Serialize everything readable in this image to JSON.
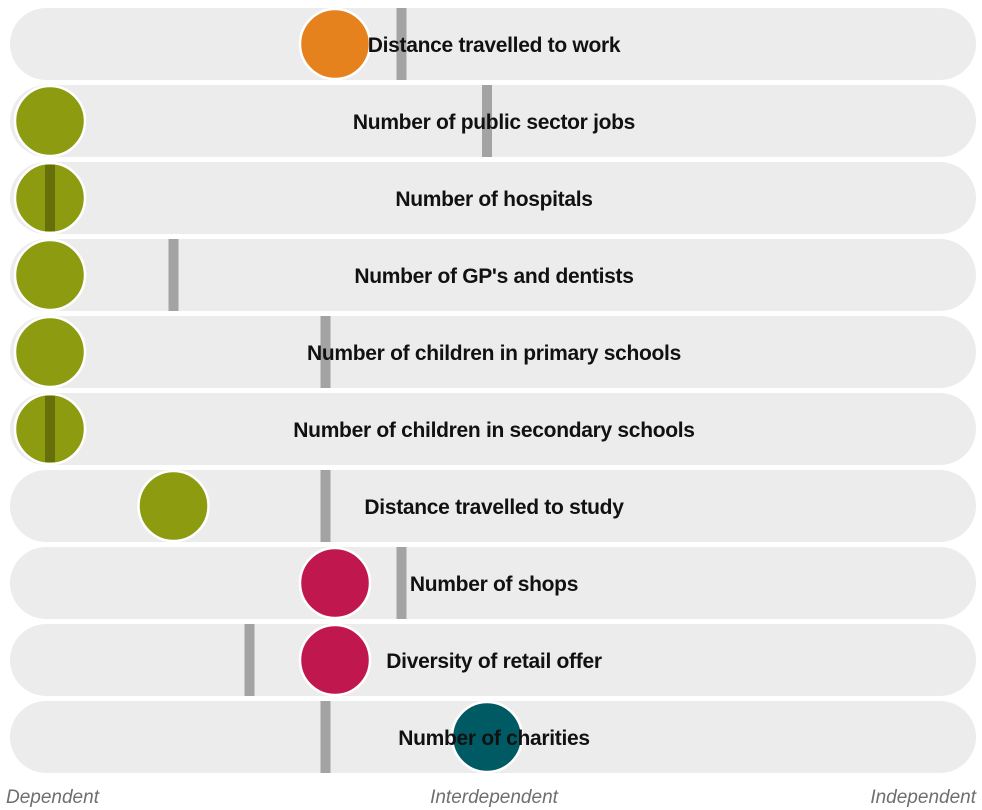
{
  "chart_data": {
    "type": "dot",
    "axis_labels": [
      "Dependent",
      "Interdependent",
      "Independent"
    ],
    "xlim": [
      0,
      1
    ],
    "colors": {
      "orange": "#e6821e",
      "olive": "#8c9b0f",
      "magenta": "#c0174f",
      "teal": "#005a64"
    },
    "rows": [
      {
        "label": "Distance travelled to work",
        "score": 0.34,
        "benchmark": 0.41,
        "color": "orange"
      },
      {
        "label": "Number of public sector jobs",
        "score": 0.04,
        "benchmark": 0.5,
        "color": "olive"
      },
      {
        "label": "Number of hospitals",
        "score": 0.04,
        "benchmark": 0.04,
        "color": "olive"
      },
      {
        "label": "Number of GP's and dentists",
        "score": 0.04,
        "benchmark": 0.17,
        "color": "olive"
      },
      {
        "label": "Number of children in primary schools",
        "score": 0.04,
        "benchmark": 0.33,
        "color": "olive"
      },
      {
        "label": "Number of children in secondary schools",
        "score": 0.04,
        "benchmark": 0.04,
        "color": "olive"
      },
      {
        "label": "Distance travelled to study",
        "score": 0.17,
        "benchmark": 0.33,
        "color": "olive"
      },
      {
        "label": "Number of shops",
        "score": 0.34,
        "benchmark": 0.41,
        "color": "magenta"
      },
      {
        "label": "Diversity of retail offer",
        "score": 0.34,
        "benchmark": 0.25,
        "color": "magenta"
      },
      {
        "label": "Number of charities",
        "score": 0.5,
        "benchmark": 0.33,
        "color": "teal"
      }
    ]
  }
}
